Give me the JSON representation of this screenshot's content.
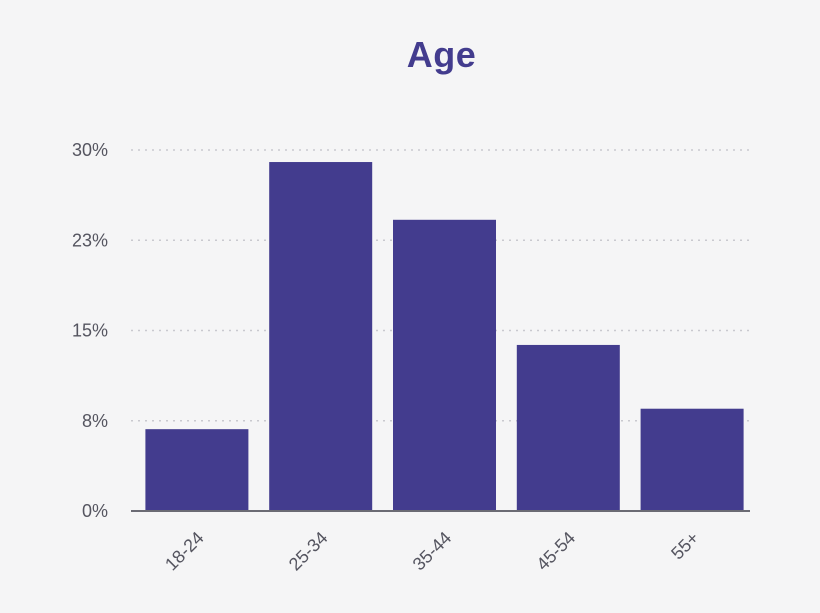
{
  "chart_data": {
    "type": "bar",
    "title": "Age",
    "categories": [
      "18-24",
      "25-34",
      "35-44",
      "45-54",
      "55+"
    ],
    "values": [
      6.8,
      29.0,
      24.2,
      13.8,
      8.5
    ],
    "ylim": [
      0,
      30
    ],
    "yticks": [
      {
        "value": 0,
        "label": "0%"
      },
      {
        "value": 7.5,
        "label": "8%"
      },
      {
        "value": 15,
        "label": "15%"
      },
      {
        "value": 22.5,
        "label": "23%"
      },
      {
        "value": 30,
        "label": "30%"
      }
    ],
    "xlabel": "",
    "ylabel": "",
    "grid": true,
    "bar_color": "#433c8e"
  }
}
